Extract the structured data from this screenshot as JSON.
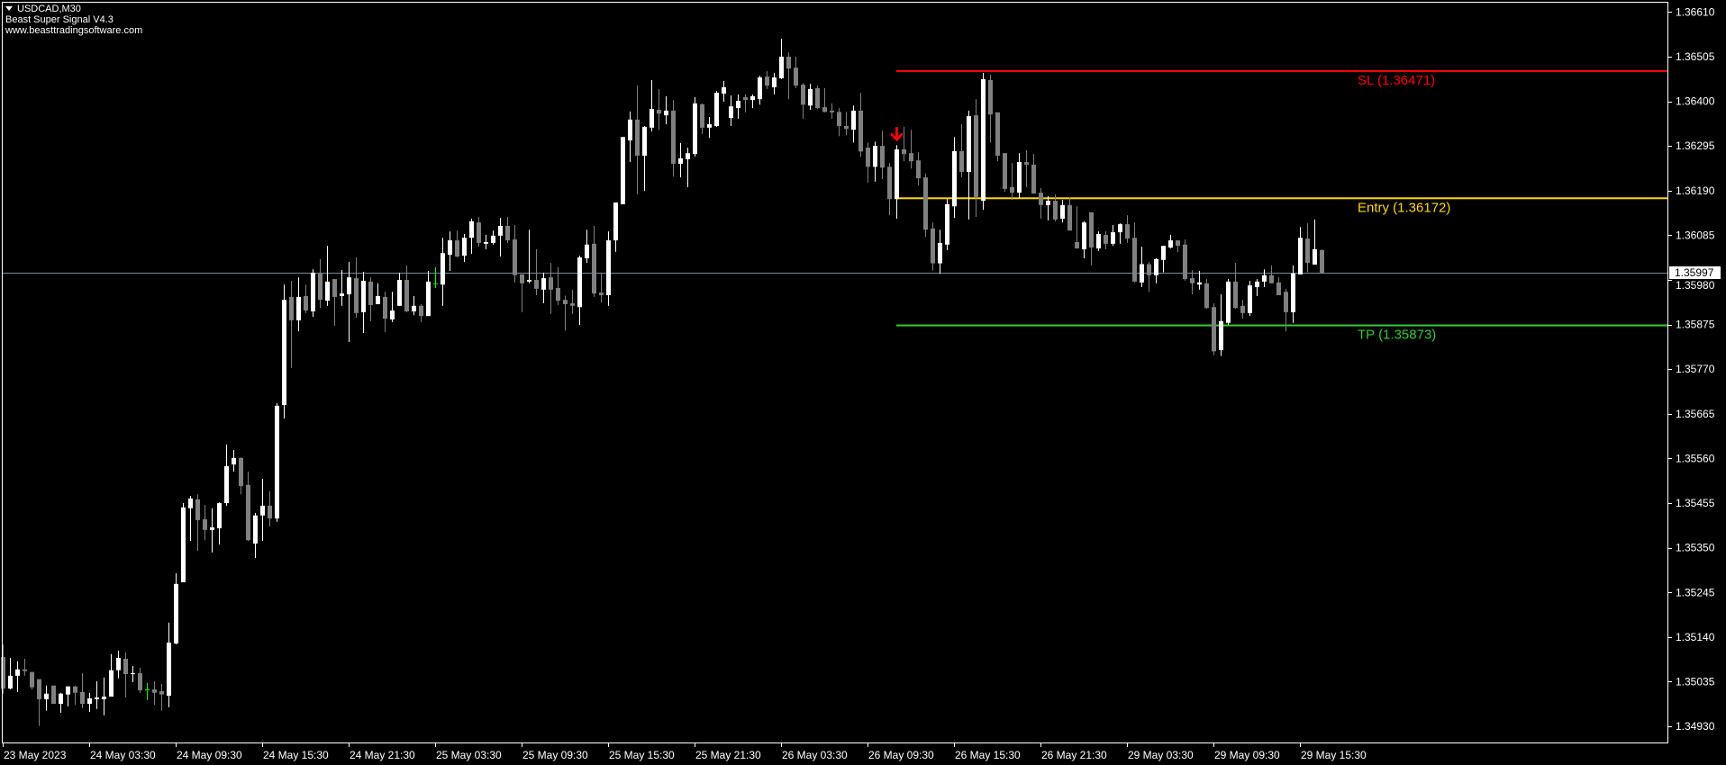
{
  "header": {
    "symbol_timeframe": "USDCAD,M30",
    "indicator_name": "Beast Super Signal V4.3",
    "website": "www.beasttradingsoftware.com"
  },
  "colors": {
    "background": "#000000",
    "frame": "#ffffff",
    "bull_candle": "#ffffff",
    "bear_candle": "#808080",
    "doji": "#00ff00",
    "bid_line": "#778899",
    "signal_arrow": "#ff0000"
  },
  "chart_data": {
    "type": "candlestick",
    "symbol": "USDCAD",
    "timeframe": "M30",
    "ylim": [
      1.3489,
      1.36634
    ],
    "grid": false,
    "y_ticks": [
      "1.36610",
      "1.36505",
      "1.36400",
      "1.36295",
      "1.36190",
      "1.36085",
      "1.35980",
      "1.35875",
      "1.35770",
      "1.35665",
      "1.35560",
      "1.35455",
      "1.35350",
      "1.35245",
      "1.35140",
      "1.35035",
      "1.34930"
    ],
    "x_ticks": [
      "23 May 2023",
      "24 May 03:30",
      "24 May 09:30",
      "24 May 15:30",
      "24 May 21:30",
      "25 May 03:30",
      "25 May 09:30",
      "25 May 15:30",
      "25 May 21:30",
      "26 May 03:30",
      "26 May 09:30",
      "26 May 15:30",
      "26 May 21:30",
      "29 May 03:30",
      "29 May 09:30",
      "29 May 15:30"
    ],
    "current_price": "1.35997",
    "signal": {
      "type": "sell",
      "icon": "arrow-down-icon",
      "candle": 124
    },
    "levels": [
      {
        "name": "sl",
        "label": "SL (1.36471)",
        "price": 1.36471,
        "color": "#ff0000"
      },
      {
        "name": "entry",
        "label": "Entry (1.36172)",
        "price": 1.36172,
        "color": "#ffd700"
      },
      {
        "name": "tp",
        "label": "TP (1.35873)",
        "price": 1.35873,
        "color": "#32cd32"
      }
    ],
    "ohlc_format": [
      "open",
      "high",
      "low",
      "close"
    ],
    "candles": [
      [
        1.35093,
        1.35123,
        1.35007,
        1.35019
      ],
      [
        1.35019,
        1.35091,
        1.35017,
        1.35049
      ],
      [
        1.35049,
        1.35083,
        1.35011,
        1.35064
      ],
      [
        1.35064,
        1.35089,
        1.35049,
        1.3506
      ],
      [
        1.35058,
        1.35058,
        1.35017,
        1.35022
      ],
      [
        1.35041,
        1.35041,
        1.34931,
        1.34994
      ],
      [
        1.34994,
        1.35026,
        1.34967,
        1.35007
      ],
      [
        1.35026,
        1.35026,
        1.34983,
        1.34983
      ],
      [
        1.34983,
        1.35009,
        1.34962,
        1.35007
      ],
      [
        1.35005,
        1.35024,
        1.34977,
        1.35024
      ],
      [
        1.35024,
        1.35026,
        1.34981,
        1.35009
      ],
      [
        1.35011,
        1.35055,
        1.34973,
        1.34983
      ],
      [
        1.34983,
        1.35009,
        1.34964,
        1.34996
      ],
      [
        1.34994,
        1.35036,
        1.34971,
        1.34998
      ],
      [
        1.34994,
        1.35045,
        1.34956,
        1.35
      ],
      [
        1.35,
        1.351,
        1.35,
        1.35062
      ],
      [
        1.35062,
        1.35108,
        1.35043,
        1.35091
      ],
      [
        1.35089,
        1.35104,
        1.34998,
        1.35053
      ],
      [
        1.35053,
        1.35072,
        1.35034,
        1.35055
      ],
      [
        1.35055,
        1.35068,
        1.35009,
        1.35015
      ],
      [
        1.35017,
        1.35032,
        1.34992,
        1.35017
      ],
      [
        1.35017,
        1.35036,
        1.34981,
        1.35009
      ],
      [
        1.35013,
        1.3503,
        1.34967,
        1.35005
      ],
      [
        1.35002,
        1.35174,
        1.34975,
        1.35127
      ],
      [
        1.35125,
        1.3529,
        1.35123,
        1.35265
      ],
      [
        1.35269,
        1.35455,
        1.35269,
        1.35445
      ],
      [
        1.35443,
        1.35472,
        1.35366,
        1.35466
      ],
      [
        1.35464,
        1.35476,
        1.35343,
        1.35415
      ],
      [
        1.35417,
        1.35451,
        1.35368,
        1.35392
      ],
      [
        1.35392,
        1.35443,
        1.35339,
        1.35398
      ],
      [
        1.35396,
        1.35457,
        1.35358,
        1.35455
      ],
      [
        1.35455,
        1.35593,
        1.35449,
        1.35542
      ],
      [
        1.35546,
        1.3558,
        1.35529,
        1.35561
      ],
      [
        1.35561,
        1.35563,
        1.35476,
        1.35495
      ],
      [
        1.35498,
        1.35529,
        1.35366,
        1.35368
      ],
      [
        1.3536,
        1.35432,
        1.35326,
        1.35426
      ],
      [
        1.35426,
        1.35512,
        1.35366,
        1.35449
      ],
      [
        1.35449,
        1.35483,
        1.354,
        1.35419
      ],
      [
        1.35419,
        1.3569,
        1.35411,
        1.35684
      ],
      [
        1.35686,
        1.35969,
        1.35654,
        1.35933
      ],
      [
        1.3594,
        1.35978,
        1.35773,
        1.35885
      ],
      [
        1.35885,
        1.35986,
        1.35859,
        1.3594
      ],
      [
        1.35942,
        1.35969,
        1.35902,
        1.35908
      ],
      [
        1.35906,
        1.36005,
        1.35893,
        1.35997
      ],
      [
        1.35997,
        1.36029,
        1.35914,
        1.35933
      ],
      [
        1.35931,
        1.3606,
        1.35919,
        1.35976
      ],
      [
        1.35982,
        1.35982,
        1.35872,
        1.3594
      ],
      [
        1.35942,
        1.36003,
        1.35919,
        1.35948
      ],
      [
        1.35946,
        1.36022,
        1.35834,
        1.35986
      ],
      [
        1.35984,
        1.36033,
        1.35891,
        1.35902
      ],
      [
        1.35904,
        1.35999,
        1.35855,
        1.35978
      ],
      [
        1.35976,
        1.35986,
        1.35883,
        1.35921
      ],
      [
        1.35923,
        1.35972,
        1.35923,
        1.35942
      ],
      [
        1.3594,
        1.35952,
        1.35857,
        1.35889
      ],
      [
        1.35887,
        1.35952,
        1.35881,
        1.35908
      ],
      [
        1.35919,
        1.35997,
        1.35919,
        1.3598
      ],
      [
        1.3598,
        1.36014,
        1.35904,
        1.35906
      ],
      [
        1.35906,
        1.35942,
        1.35897,
        1.35919
      ],
      [
        1.35919,
        1.35923,
        1.35881,
        1.35895
      ],
      [
        1.35895,
        1.36001,
        1.35895,
        1.35976
      ],
      [
        1.35972,
        1.3601,
        1.35961,
        1.35972
      ],
      [
        1.35969,
        1.36079,
        1.35919,
        1.36043
      ],
      [
        1.36039,
        1.36094,
        1.36001,
        1.36073
      ],
      [
        1.36073,
        1.36096,
        1.36033,
        1.36035
      ],
      [
        1.36037,
        1.36088,
        1.36022,
        1.36079
      ],
      [
        1.36079,
        1.36124,
        1.36041,
        1.36118
      ],
      [
        1.36115,
        1.36128,
        1.36058,
        1.36067
      ],
      [
        1.36065,
        1.36086,
        1.36052,
        1.36069
      ],
      [
        1.36067,
        1.36096,
        1.36063,
        1.36084
      ],
      [
        1.36084,
        1.36126,
        1.36035,
        1.36107
      ],
      [
        1.36107,
        1.36128,
        1.36067,
        1.36073
      ],
      [
        1.36075,
        1.36109,
        1.35974,
        1.35991
      ],
      [
        1.35993,
        1.35993,
        1.35904,
        1.35972
      ],
      [
        1.35976,
        1.36098,
        1.35972,
        1.3598
      ],
      [
        1.3598,
        1.36052,
        1.35944,
        1.35959
      ],
      [
        1.35957,
        1.35997,
        1.35925,
        1.35984
      ],
      [
        1.35986,
        1.3602,
        1.359,
        1.35957
      ],
      [
        1.35961,
        1.3601,
        1.35921,
        1.35931
      ],
      [
        1.35933,
        1.35943,
        1.35861,
        1.35923
      ],
      [
        1.35925,
        1.35957,
        1.359,
        1.35919
      ],
      [
        1.35916,
        1.36037,
        1.35874,
        1.36033
      ],
      [
        1.36031,
        1.36098,
        1.3602,
        1.36063
      ],
      [
        1.36065,
        1.36107,
        1.3594,
        1.35948
      ],
      [
        1.3595,
        1.35997,
        1.35927,
        1.35944
      ],
      [
        1.35944,
        1.36094,
        1.35919,
        1.36073
      ],
      [
        1.36073,
        1.36162,
        1.36046,
        1.36162
      ],
      [
        1.36158,
        1.36316,
        1.36158,
        1.36316
      ],
      [
        1.36308,
        1.36376,
        1.36257,
        1.36357
      ],
      [
        1.36357,
        1.36437,
        1.36181,
        1.36272
      ],
      [
        1.36272,
        1.36342,
        1.36189,
        1.3634
      ],
      [
        1.36338,
        1.3645,
        1.36329,
        1.36382
      ],
      [
        1.3638,
        1.36429,
        1.36333,
        1.36371
      ],
      [
        1.36367,
        1.36412,
        1.36346,
        1.36378
      ],
      [
        1.36378,
        1.36403,
        1.36223,
        1.36253
      ],
      [
        1.36253,
        1.36302,
        1.36221,
        1.36266
      ],
      [
        1.36264,
        1.36291,
        1.36198,
        1.36278
      ],
      [
        1.36276,
        1.3641,
        1.3627,
        1.36395
      ],
      [
        1.36393,
        1.36395,
        1.36323,
        1.36338
      ],
      [
        1.36338,
        1.36363,
        1.36314,
        1.36346
      ],
      [
        1.36342,
        1.36424,
        1.3634,
        1.3642
      ],
      [
        1.36418,
        1.36448,
        1.36399,
        1.36433
      ],
      [
        1.36361,
        1.36414,
        1.36342,
        1.36388
      ],
      [
        1.36384,
        1.36416,
        1.36359,
        1.36401
      ],
      [
        1.3641,
        1.36416,
        1.36374,
        1.36403
      ],
      [
        1.36403,
        1.36416,
        1.36384,
        1.36412
      ],
      [
        1.36405,
        1.3646,
        1.36392,
        1.36456
      ],
      [
        1.36458,
        1.36471,
        1.36429,
        1.36437
      ],
      [
        1.36433,
        1.36467,
        1.36416,
        1.36456
      ],
      [
        1.36454,
        1.36547,
        1.36452,
        1.36505
      ],
      [
        1.36505,
        1.36515,
        1.36405,
        1.36477
      ],
      [
        1.36479,
        1.36505,
        1.36431,
        1.36437
      ],
      [
        1.36439,
        1.36443,
        1.36359,
        1.36392
      ],
      [
        1.3639,
        1.36441,
        1.3638,
        1.36429
      ],
      [
        1.36431,
        1.36437,
        1.36382,
        1.36384
      ],
      [
        1.36386,
        1.36431,
        1.36374,
        1.36375
      ],
      [
        1.36378,
        1.36395,
        1.36359,
        1.36374
      ],
      [
        1.36375,
        1.36384,
        1.36318,
        1.36342
      ],
      [
        1.36342,
        1.36375,
        1.3632,
        1.36335
      ],
      [
        1.36333,
        1.3639,
        1.36303,
        1.36378
      ],
      [
        1.36378,
        1.3642,
        1.3627,
        1.36282
      ],
      [
        1.36291,
        1.36303,
        1.36209,
        1.36246
      ],
      [
        1.36246,
        1.36305,
        1.36211,
        1.36295
      ],
      [
        1.36295,
        1.36331,
        1.36217,
        1.36244
      ],
      [
        1.36246,
        1.36255,
        1.36132,
        1.3617
      ],
      [
        1.3617,
        1.36297,
        1.36124,
        1.36287
      ],
      [
        1.36287,
        1.3634,
        1.36259,
        1.36276
      ],
      [
        1.36278,
        1.36333,
        1.36242,
        1.36259
      ],
      [
        1.36261,
        1.3628,
        1.36202,
        1.36219
      ],
      [
        1.36221,
        1.3623,
        1.36081,
        1.36098
      ],
      [
        1.36101,
        1.36115,
        1.36002,
        1.36019
      ],
      [
        1.36019,
        1.36098,
        1.35994,
        1.36067
      ],
      [
        1.36063,
        1.3617,
        1.3605,
        1.36158
      ],
      [
        1.36153,
        1.36316,
        1.36126,
        1.36283
      ],
      [
        1.36283,
        1.36346,
        1.36221,
        1.36234
      ],
      [
        1.36234,
        1.36378,
        1.36122,
        1.36365
      ],
      [
        1.36367,
        1.36405,
        1.36128,
        1.36175
      ],
      [
        1.36166,
        1.36467,
        1.36145,
        1.36452
      ],
      [
        1.3645,
        1.36462,
        1.36303,
        1.36369
      ],
      [
        1.36374,
        1.36374,
        1.36259,
        1.36272
      ],
      [
        1.36278,
        1.36278,
        1.36187,
        1.36194
      ],
      [
        1.36198,
        1.36255,
        1.36168,
        1.36185
      ],
      [
        1.36185,
        1.36278,
        1.36172,
        1.36257
      ],
      [
        1.36257,
        1.36285,
        1.36198,
        1.36251
      ],
      [
        1.36251,
        1.36276,
        1.36183,
        1.36183
      ],
      [
        1.36185,
        1.36196,
        1.36124,
        1.36156
      ],
      [
        1.36156,
        1.36177,
        1.3612,
        1.36166
      ],
      [
        1.36166,
        1.36181,
        1.36118,
        1.36122
      ],
      [
        1.36124,
        1.36168,
        1.36115,
        1.36156
      ],
      [
        1.36156,
        1.36173,
        1.36096,
        1.36096
      ],
      [
        1.36069,
        1.36153,
        1.36054,
        1.36054
      ],
      [
        1.36052,
        1.36118,
        1.36031,
        1.36115
      ],
      [
        1.36139,
        1.36139,
        1.36014,
        1.36056
      ],
      [
        1.36054,
        1.36094,
        1.36048,
        1.36088
      ],
      [
        1.36086,
        1.36094,
        1.36052,
        1.36065
      ],
      [
        1.36065,
        1.36109,
        1.3606,
        1.36092
      ],
      [
        1.36092,
        1.36113,
        1.36065,
        1.36111
      ],
      [
        1.36111,
        1.36132,
        1.36067,
        1.36077
      ],
      [
        1.36079,
        1.36115,
        1.35974,
        1.35976
      ],
      [
        1.35974,
        1.36058,
        1.35963,
        1.36017
      ],
      [
        1.36017,
        1.36022,
        1.35952,
        1.35991
      ],
      [
        1.35991,
        1.36031,
        1.35972,
        1.36029
      ],
      [
        1.36027,
        1.3606,
        1.35998,
        1.3606
      ],
      [
        1.36056,
        1.36086,
        1.36054,
        1.36073
      ],
      [
        1.36073,
        1.36073,
        1.36045,
        1.3606
      ],
      [
        1.36063,
        1.36075,
        1.35978,
        1.35982
      ],
      [
        1.35984,
        1.36003,
        1.35946,
        1.35972
      ],
      [
        1.35969,
        1.36001,
        1.35957,
        1.35974
      ],
      [
        1.35972,
        1.35982,
        1.35912,
        1.35914
      ],
      [
        1.35916,
        1.35925,
        1.35803,
        1.35812
      ],
      [
        1.35815,
        1.35946,
        1.35801,
        1.35883
      ],
      [
        1.35879,
        1.35982,
        1.35874,
        1.35976
      ],
      [
        1.35976,
        1.3602,
        1.35912,
        1.35914
      ],
      [
        1.35919,
        1.35933,
        1.35889,
        1.35902
      ],
      [
        1.35902,
        1.35978,
        1.35895,
        1.35967
      ],
      [
        1.35963,
        1.35982,
        1.35942,
        1.35976
      ],
      [
        1.35976,
        1.36005,
        1.35963,
        1.35991
      ],
      [
        1.35991,
        1.36014,
        1.35972,
        1.35972
      ],
      [
        1.35974,
        1.35986,
        1.35944,
        1.35944
      ],
      [
        1.35952,
        1.35959,
        1.35859,
        1.35904
      ],
      [
        1.35904,
        1.36014,
        1.35879,
        1.35995
      ],
      [
        1.35993,
        1.36104,
        1.35993,
        1.36079
      ],
      [
        1.36077,
        1.36113,
        1.35998,
        1.3602
      ],
      [
        1.36016,
        1.36122,
        1.36016,
        1.36052
      ],
      [
        1.3605,
        1.36052,
        1.35997,
        1.35997
      ]
    ]
  }
}
